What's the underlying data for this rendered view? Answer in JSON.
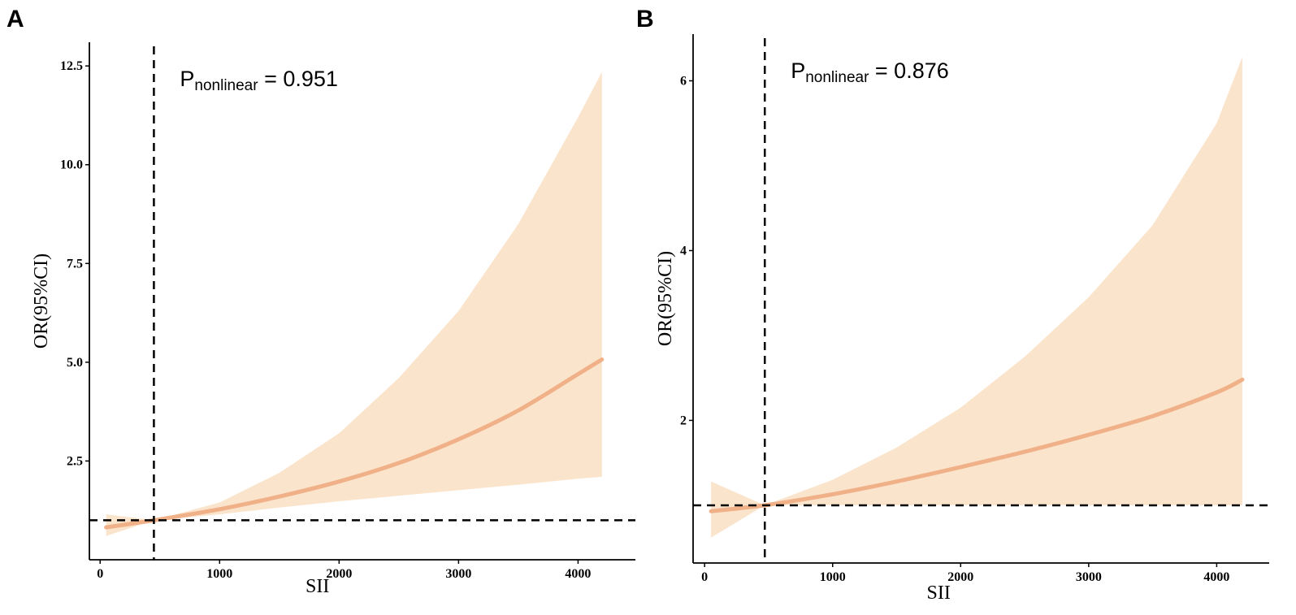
{
  "chart_data": [
    {
      "type": "line",
      "panel_label": "A",
      "xlabel": "SII",
      "ylabel": "OR(95%CI)",
      "xlim": [
        -90,
        4480
      ],
      "ylim": [
        0,
        13.1
      ],
      "xticks": [
        0,
        1000,
        2000,
        3000,
        4000
      ],
      "xtick_labels": [
        "0",
        "1000",
        "2000",
        "3000",
        "4000"
      ],
      "yticks": [
        2.5,
        5.0,
        7.5,
        10.0,
        12.5
      ],
      "ytick_labels": [
        "2.5",
        "5.0",
        "7.5",
        "10.0",
        "12.5"
      ],
      "annotation_p": "P",
      "annotation_sub": "nonlinear",
      "annotation_value": " = 0.951",
      "ref_x": 450,
      "ref_y": 1.0,
      "line_color": "#f0b088",
      "band_color": "#fbe4cc",
      "series": [
        {
          "name": "OR",
          "x": [
            50,
            450,
            1000,
            1500,
            2000,
            2500,
            3000,
            3500,
            4000,
            4200
          ],
          "y": [
            0.82,
            1.0,
            1.28,
            1.6,
            1.98,
            2.45,
            3.05,
            3.78,
            4.7,
            5.07
          ]
        },
        {
          "name": "Upper 95% CI",
          "x": [
            50,
            450,
            1000,
            1500,
            2000,
            2500,
            3000,
            3500,
            4000,
            4200
          ],
          "y": [
            1.15,
            1.0,
            1.45,
            2.2,
            3.2,
            4.6,
            6.3,
            8.5,
            11.2,
            12.35
          ]
        },
        {
          "name": "Lower 95% CI",
          "x": [
            50,
            450,
            1000,
            1500,
            2000,
            2500,
            3000,
            3500,
            4000,
            4200
          ],
          "y": [
            0.6,
            1.0,
            1.15,
            1.32,
            1.48,
            1.62,
            1.76,
            1.9,
            2.05,
            2.1
          ]
        }
      ]
    },
    {
      "type": "line",
      "panel_label": "B",
      "xlabel": "SII",
      "ylabel": "OR(95%CI)",
      "xlim": [
        -90,
        4410
      ],
      "ylim": [
        0.32,
        6.55
      ],
      "xticks": [
        0,
        1000,
        2000,
        3000,
        4000
      ],
      "xtick_labels": [
        "0",
        "1000",
        "2000",
        "3000",
        "4000"
      ],
      "yticks": [
        2,
        4,
        6
      ],
      "ytick_labels": [
        "2",
        "4",
        "6"
      ],
      "annotation_p": "P",
      "annotation_sub": "nonlinear",
      "annotation_value": " = 0.876",
      "ref_x": 470,
      "ref_y": 1.0,
      "line_color": "#f0b088",
      "band_color": "#fbe4cc",
      "series": [
        {
          "name": "OR",
          "x": [
            50,
            470,
            1000,
            1500,
            2000,
            2500,
            3000,
            3500,
            4000,
            4200
          ],
          "y": [
            0.93,
            1.0,
            1.13,
            1.28,
            1.45,
            1.63,
            1.83,
            2.05,
            2.33,
            2.48
          ]
        },
        {
          "name": "Upper 95% CI",
          "x": [
            50,
            470,
            1000,
            1500,
            2000,
            2500,
            3000,
            3500,
            4000,
            4200
          ],
          "y": [
            1.28,
            1.0,
            1.3,
            1.68,
            2.15,
            2.75,
            3.45,
            4.3,
            5.5,
            6.28
          ]
        },
        {
          "name": "Lower 95% CI",
          "x": [
            50,
            470,
            1000,
            1500,
            2000,
            2500,
            3000,
            3500,
            4000,
            4200
          ],
          "y": [
            0.62,
            1.0,
            1.0,
            1.0,
            1.0,
            1.0,
            1.0,
            1.0,
            1.0,
            1.0
          ]
        }
      ]
    }
  ]
}
